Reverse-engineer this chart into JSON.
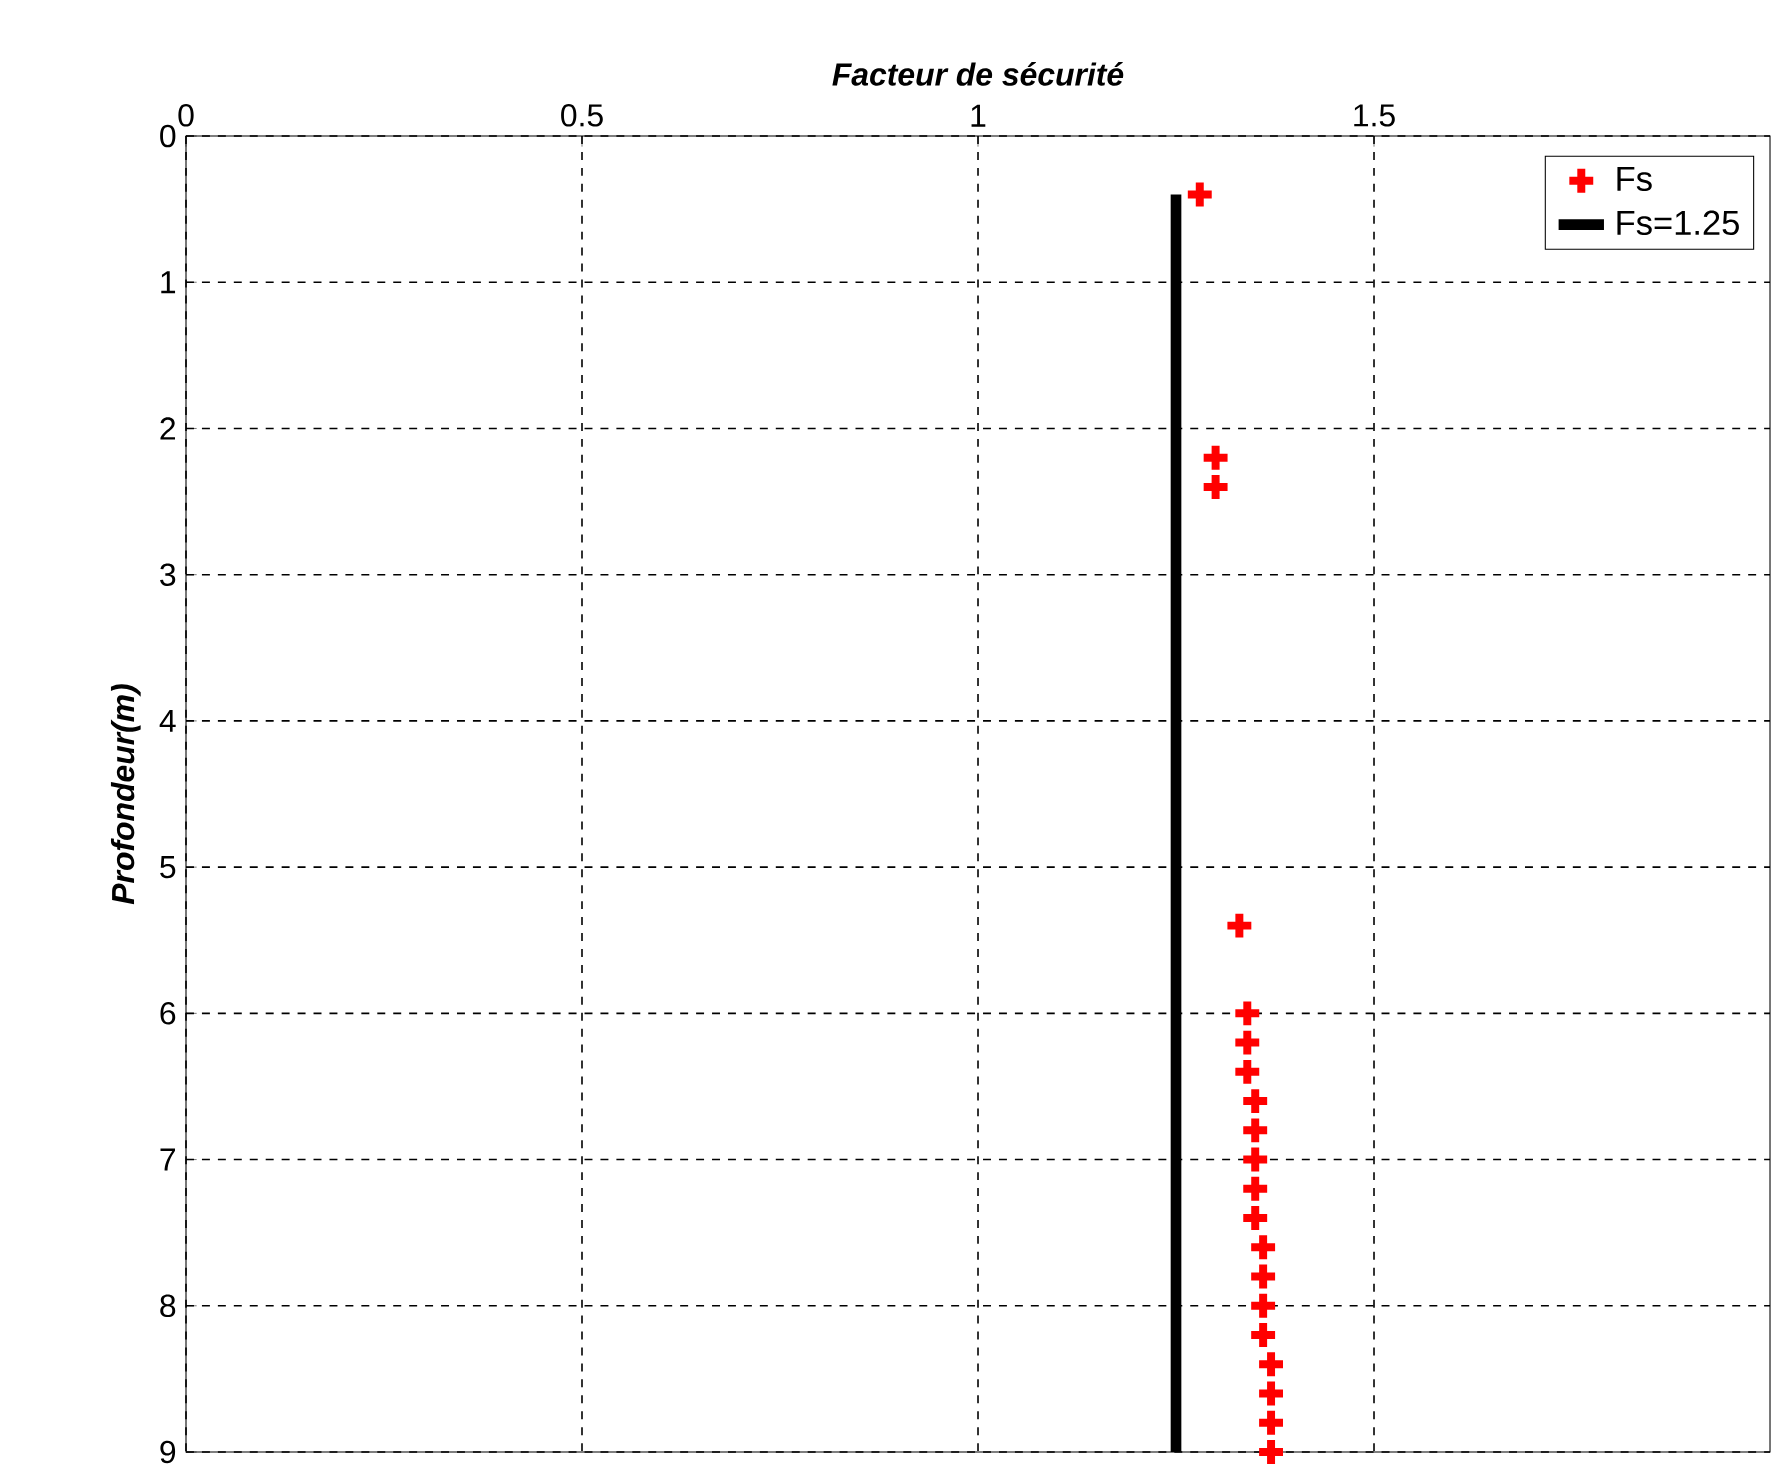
{
  "chart_data": {
    "type": "scatter",
    "xlabel": "Facteur de sécurité",
    "ylabel": "Profondeur(m)",
    "xlim": [
      0,
      2
    ],
    "xticks": [
      0,
      0.5,
      1,
      1.5
    ],
    "ylim": [
      9,
      0
    ],
    "yticks": [
      0,
      1,
      2,
      3,
      4,
      5,
      6,
      7,
      8,
      9
    ],
    "grid": true,
    "legend": "top right",
    "series": [
      {
        "name": "Fs",
        "color": "#ff0000",
        "marker": "cross",
        "x": [
          1.28,
          1.3,
          1.3,
          1.33,
          1.34,
          1.34,
          1.34,
          1.35,
          1.35,
          1.35,
          1.35,
          1.35,
          1.36,
          1.36,
          1.36,
          1.36,
          1.37,
          1.37,
          1.37,
          1.37
        ],
        "values": [
          0.4,
          2.2,
          2.4,
          5.4,
          6.0,
          6.2,
          6.4,
          6.6,
          6.8,
          7.0,
          7.2,
          7.4,
          7.6,
          7.8,
          8.0,
          8.2,
          8.4,
          8.6,
          8.8,
          9.0
        ]
      },
      {
        "name": "Fs=1.25",
        "type": "line",
        "marker": "none",
        "color": "#000000",
        "x": [
          1.25,
          1.25
        ],
        "values": [
          0.4,
          9
        ]
      }
    ]
  }
}
